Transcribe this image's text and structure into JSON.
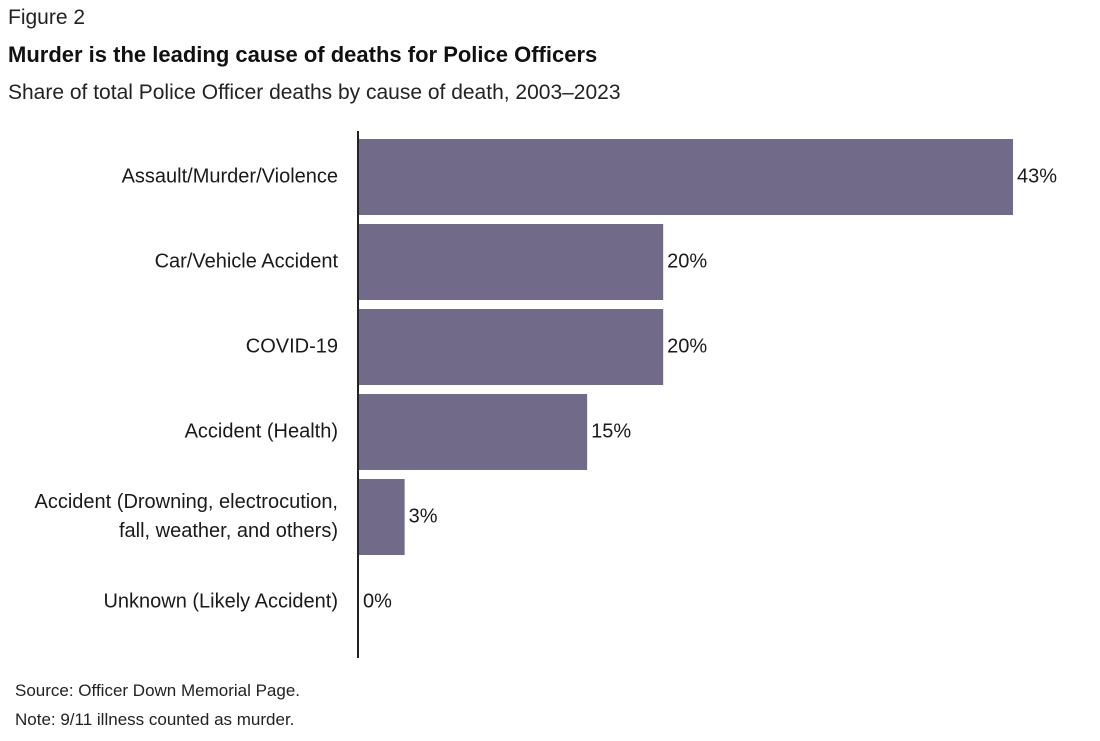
{
  "figure_label": "Figure 2",
  "chart_data": {
    "type": "bar",
    "orientation": "horizontal",
    "title": "Murder is the leading cause of deaths for Police Officers",
    "subtitle": "Share of total Police Officer deaths by cause of death, 2003–2023",
    "categories": [
      [
        "Assault/Murder/Violence"
      ],
      [
        "Car/Vehicle Accident"
      ],
      [
        "COVID-19"
      ],
      [
        "Accident (Health)"
      ],
      [
        "Accident (Drowning, electrocution,",
        "fall, weather, and others)"
      ],
      [
        "Unknown (Likely Accident)"
      ]
    ],
    "values": [
      43,
      20,
      20,
      15,
      3,
      0
    ],
    "value_labels": [
      "43%",
      "20%",
      "20%",
      "15%",
      "3%",
      "0%"
    ],
    "xlim": [
      0,
      43
    ],
    "grid": false,
    "legend": "none",
    "bar_color": "#716a88"
  },
  "footer": {
    "source": "Source: Officer Down Memorial Page.",
    "note": "Note: 9/11 illness counted as murder."
  }
}
